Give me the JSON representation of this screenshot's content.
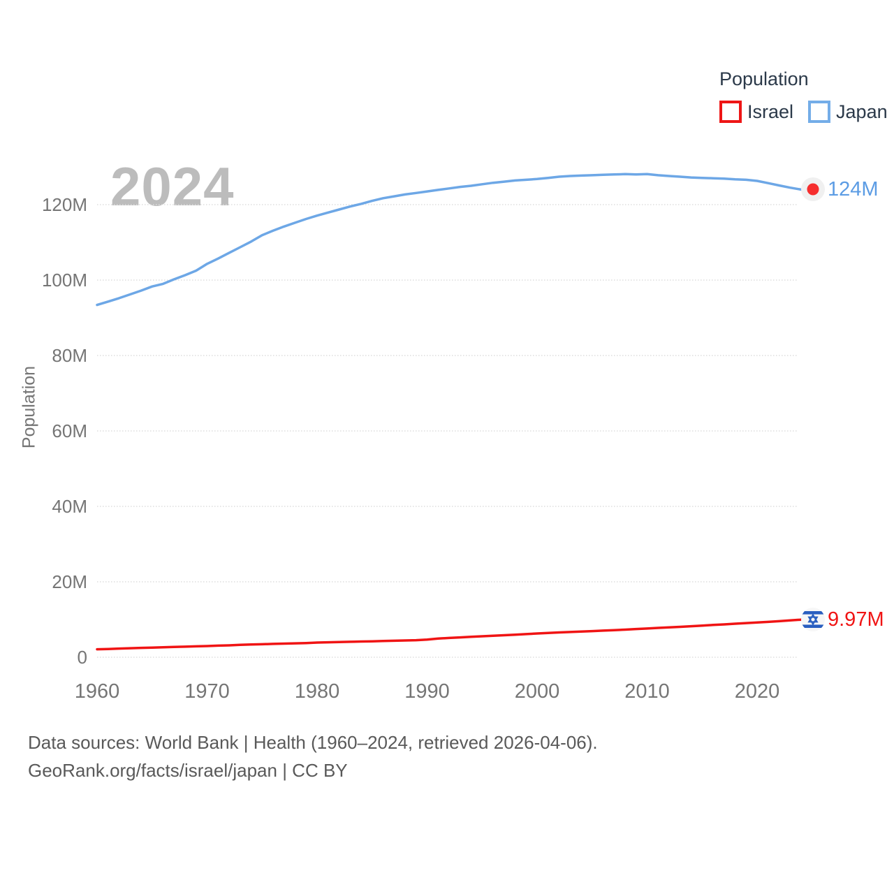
{
  "legend": {
    "title": "Population",
    "items": [
      {
        "label": "Israel",
        "color": "#ee1616"
      },
      {
        "label": "Japan",
        "color": "#74ade8"
      }
    ]
  },
  "watermark": {
    "text": "2024"
  },
  "chart_data": {
    "type": "line",
    "title": "",
    "xlabel": "",
    "ylabel": "Population",
    "grid": true,
    "legend_position": "top-right",
    "xlim": [
      1960,
      2024
    ],
    "ylim": [
      0,
      133
    ],
    "xticks": [
      {
        "v": 1960,
        "label": "1960"
      },
      {
        "v": 1970,
        "label": "1970"
      },
      {
        "v": 1980,
        "label": "1980"
      },
      {
        "v": 1990,
        "label": "1990"
      },
      {
        "v": 2000,
        "label": "2000"
      },
      {
        "v": 2010,
        "label": "2010"
      },
      {
        "v": 2020,
        "label": "2020"
      }
    ],
    "yticks": [
      {
        "v": 0,
        "label": "0"
      },
      {
        "v": 20,
        "label": "20M"
      },
      {
        "v": 40,
        "label": "40M"
      },
      {
        "v": 60,
        "label": "60M"
      },
      {
        "v": 80,
        "label": "80M"
      },
      {
        "v": 100,
        "label": "100M"
      },
      {
        "v": 120,
        "label": "120M"
      }
    ],
    "x": [
      1960,
      1961,
      1962,
      1963,
      1964,
      1965,
      1966,
      1967,
      1968,
      1969,
      1970,
      1971,
      1972,
      1973,
      1974,
      1975,
      1976,
      1977,
      1978,
      1979,
      1980,
      1981,
      1982,
      1983,
      1984,
      1985,
      1986,
      1987,
      1988,
      1989,
      1990,
      1991,
      1992,
      1993,
      1994,
      1995,
      1996,
      1997,
      1998,
      1999,
      2000,
      2001,
      2002,
      2003,
      2004,
      2005,
      2006,
      2007,
      2008,
      2009,
      2010,
      2011,
      2012,
      2013,
      2014,
      2015,
      2016,
      2017,
      2018,
      2019,
      2020,
      2021,
      2022,
      2023,
      2024
    ],
    "series": [
      {
        "name": "Israel",
        "unit": "millions",
        "color": "#f01414",
        "label_color": "#f01414",
        "end_label": "9.97M",
        "end_value": 9.97,
        "end_marker": "israel-flag",
        "values": [
          2.11,
          2.18,
          2.29,
          2.38,
          2.48,
          2.56,
          2.63,
          2.72,
          2.8,
          2.88,
          2.97,
          3.07,
          3.15,
          3.28,
          3.38,
          3.45,
          3.53,
          3.61,
          3.69,
          3.76,
          3.88,
          3.96,
          4.03,
          4.1,
          4.16,
          4.23,
          4.3,
          4.37,
          4.44,
          4.52,
          4.66,
          4.95,
          5.12,
          5.26,
          5.4,
          5.55,
          5.69,
          5.83,
          5.97,
          6.13,
          6.29,
          6.44,
          6.57,
          6.69,
          6.81,
          6.93,
          7.05,
          7.18,
          7.31,
          7.49,
          7.62,
          7.77,
          7.91,
          8.06,
          8.22,
          8.38,
          8.55,
          8.71,
          8.88,
          9.05,
          9.22,
          9.37,
          9.56,
          9.76,
          9.97
        ]
      },
      {
        "name": "Japan",
        "unit": "millions",
        "color": "#6da7e6",
        "label_color": "#5c9ce4",
        "end_label": "124M",
        "end_value": 124.0,
        "end_marker": "japan-flag",
        "values": [
          93.4,
          94.3,
          95.2,
          96.2,
          97.2,
          98.3,
          99.0,
          100.2,
          101.3,
          102.5,
          104.3,
          105.7,
          107.2,
          108.7,
          110.2,
          111.9,
          113.1,
          114.2,
          115.2,
          116.2,
          117.1,
          117.9,
          118.7,
          119.5,
          120.2,
          121.0,
          121.7,
          122.2,
          122.7,
          123.1,
          123.5,
          123.9,
          124.3,
          124.7,
          125.0,
          125.4,
          125.8,
          126.1,
          126.4,
          126.6,
          126.8,
          127.1,
          127.4,
          127.6,
          127.7,
          127.8,
          127.9,
          128.0,
          128.1,
          128.0,
          128.1,
          127.8,
          127.6,
          127.4,
          127.2,
          127.1,
          127.0,
          126.9,
          126.7,
          126.6,
          126.3,
          125.7,
          125.1,
          124.5,
          124.0
        ]
      }
    ]
  },
  "footer": {
    "line1": "Data sources: World Bank | Health (1960–2024, retrieved 2026-04-06).",
    "line2": "GeoRank.org/facts/israel/japan | CC BY"
  },
  "colors": {
    "grid": "#dedede",
    "tick_text": "#757575",
    "legend_text": "#2b3949",
    "watermark": "#bcbcbc",
    "footer_text": "#595959",
    "japan_flag_red": "#f62e2e",
    "israel_flag_blue": "#2a5fc0"
  }
}
